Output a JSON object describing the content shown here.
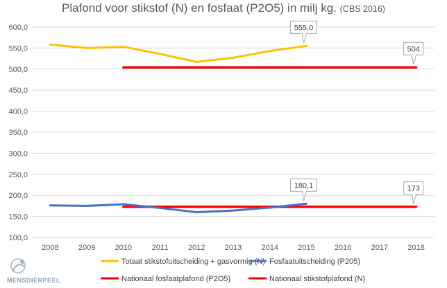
{
  "chart_data": {
    "type": "line",
    "title": "Plafond voor stikstof (N) en fosfaat (P2O5) in milj kg.",
    "subtitle": "(CBS 2016)",
    "categories": [
      "2008",
      "2009",
      "2010",
      "2011",
      "2012",
      "2013",
      "2014",
      "2015",
      "2016",
      "2017",
      "2018"
    ],
    "ylim": [
      100,
      600
    ],
    "yticks": [
      "100,0",
      "150,0",
      "200,0",
      "250,0",
      "300,0",
      "350,0",
      "400,0",
      "450,0",
      "500,0",
      "550,0",
      "600,0"
    ],
    "grid": true,
    "legend_position": "bottom",
    "series": [
      {
        "name": "Totaat stikstofuitscheiding + gasvormig (N)",
        "color": "#ffc000",
        "x": [
          "2008",
          "2009",
          "2010",
          "2011",
          "2012",
          "2013",
          "2014",
          "2015"
        ],
        "values": [
          558,
          550,
          553,
          536,
          517,
          527,
          543,
          555
        ]
      },
      {
        "name": "Fosfaatuitscheiding (P205)",
        "color": "#4472c4",
        "x": [
          "2008",
          "2009",
          "2010",
          "2011",
          "2012",
          "2013",
          "2014",
          "2015"
        ],
        "values": [
          176,
          175,
          179,
          170,
          160,
          164,
          171,
          180.1
        ]
      },
      {
        "name": "Nationaal fosfaatplafond (P2O5)",
        "color": "#ff0000",
        "x": [
          "2010",
          "2018"
        ],
        "values": [
          173,
          173
        ]
      },
      {
        "name": "Nationaal stikstofplafond (N)",
        "color": "#ff0000",
        "x": [
          "2010",
          "2018"
        ],
        "values": [
          504,
          504
        ]
      }
    ],
    "annotations": [
      {
        "text": "555,0",
        "x": "2015",
        "y": 555
      },
      {
        "text": "504",
        "x": "2018",
        "y": 504
      },
      {
        "text": "180,1",
        "x": "2015",
        "y": 180.1
      },
      {
        "text": "173",
        "x": "2018",
        "y": 173
      }
    ]
  },
  "logo": {
    "text": "MENSDIERPEEL"
  }
}
